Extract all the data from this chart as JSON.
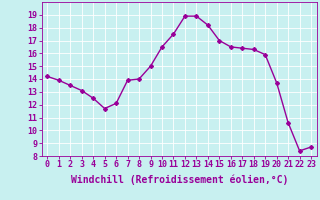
{
  "x": [
    0,
    1,
    2,
    3,
    4,
    5,
    6,
    7,
    8,
    9,
    10,
    11,
    12,
    13,
    14,
    15,
    16,
    17,
    18,
    19,
    20,
    21,
    22,
    23
  ],
  "y": [
    14.2,
    13.9,
    13.5,
    13.1,
    12.5,
    11.7,
    12.1,
    13.9,
    14.0,
    15.0,
    16.5,
    17.5,
    18.9,
    18.9,
    18.2,
    17.0,
    16.5,
    16.4,
    16.3,
    15.9,
    13.7,
    10.6,
    8.4,
    8.7
  ],
  "xlim": [
    -0.5,
    23.5
  ],
  "ylim": [
    8,
    20
  ],
  "yticks": [
    8,
    9,
    10,
    11,
    12,
    13,
    14,
    15,
    16,
    17,
    18,
    19
  ],
  "xticks": [
    0,
    1,
    2,
    3,
    4,
    5,
    6,
    7,
    8,
    9,
    10,
    11,
    12,
    13,
    14,
    15,
    16,
    17,
    18,
    19,
    20,
    21,
    22,
    23
  ],
  "xlabel": "Windchill (Refroidissement éolien,°C)",
  "line_color": "#990099",
  "marker": "D",
  "marker_size": 2,
  "line_width": 1.0,
  "bg_color": "#c8f0f0",
  "grid_color": "#ffffff",
  "tick_color": "#990099",
  "label_color": "#990099",
  "tick_fontsize": 6,
  "xlabel_fontsize": 7
}
